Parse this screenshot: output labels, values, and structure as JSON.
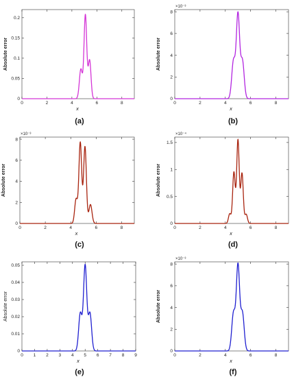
{
  "chart_data": [
    {
      "id": "a",
      "type": "line",
      "caption": "(a)",
      "color": "#d434d6",
      "ylabel": "Absolute error",
      "xlabel": "x",
      "multiplier": "",
      "xlim": [
        0,
        9
      ],
      "ylim": [
        0,
        0.22
      ],
      "xticks": [
        0,
        2,
        4,
        6,
        8
      ],
      "yticks": [
        0,
        0.05,
        0.1,
        0.15,
        0.2
      ],
      "ytick_labels": [
        "0",
        "0.05",
        "0.1",
        "0.15",
        "0.2"
      ],
      "peaks": [
        {
          "x": 4.72,
          "y": 0.073,
          "w": 0.12
        },
        {
          "x": 5.08,
          "y": 0.207,
          "w": 0.11
        },
        {
          "x": 5.42,
          "y": 0.095,
          "w": 0.11
        }
      ]
    },
    {
      "id": "b",
      "type": "line",
      "caption": "(b)",
      "color": "#b224e0",
      "ylabel": "Absolute error",
      "xlabel": "x",
      "multiplier": "×10⁻³",
      "xlim": [
        0,
        9
      ],
      "ylim": [
        0,
        0.0082
      ],
      "xticks": [
        0,
        2,
        4,
        6,
        8
      ],
      "yticks": [
        0,
        0.002,
        0.004,
        0.006,
        0.008
      ],
      "ytick_labels": [
        "0",
        "2",
        "4",
        "6",
        "8"
      ],
      "peaks": [
        {
          "x": 4.65,
          "y": 0.0035,
          "w": 0.14
        },
        {
          "x": 5.0,
          "y": 0.0077,
          "w": 0.13
        },
        {
          "x": 5.35,
          "y": 0.0035,
          "w": 0.14
        }
      ]
    },
    {
      "id": "c",
      "type": "line",
      "caption": "(c)",
      "color": "#a8230e",
      "ylabel": "Absolute error",
      "xlabel": "x",
      "multiplier": "×10⁻³",
      "xlim": [
        0,
        9
      ],
      "ylim": [
        0,
        0.0082
      ],
      "xticks": [
        0,
        2,
        4,
        6,
        8
      ],
      "yticks": [
        0,
        0.002,
        0.004,
        0.006,
        0.008
      ],
      "ytick_labels": [
        "0",
        "2",
        "4",
        "6",
        "8"
      ],
      "peaks": [
        {
          "x": 4.42,
          "y": 0.0023,
          "w": 0.11
        },
        {
          "x": 4.75,
          "y": 0.0077,
          "w": 0.11
        },
        {
          "x": 5.12,
          "y": 0.0073,
          "w": 0.11
        },
        {
          "x": 5.55,
          "y": 0.0018,
          "w": 0.12
        }
      ]
    },
    {
      "id": "d",
      "type": "line",
      "caption": "(d)",
      "color": "#a8230e",
      "ylabel": "Absolute error",
      "xlabel": "x",
      "multiplier": "×10⁻⁴",
      "xlim": [
        0,
        9
      ],
      "ylim": [
        0,
        0.00016
      ],
      "xticks": [
        0,
        2,
        4,
        6,
        8
      ],
      "yticks": [
        0,
        5e-05,
        0.0001,
        0.00015
      ],
      "ytick_labels": [
        "0",
        "0.5",
        "1",
        "1.5"
      ],
      "peaks": [
        {
          "x": 4.35,
          "y": 1.8e-05,
          "w": 0.1
        },
        {
          "x": 4.68,
          "y": 9.5e-05,
          "w": 0.1
        },
        {
          "x": 5.0,
          "y": 0.000155,
          "w": 0.1
        },
        {
          "x": 5.32,
          "y": 9.3e-05,
          "w": 0.1
        },
        {
          "x": 5.65,
          "y": 1.7e-05,
          "w": 0.1
        }
      ]
    },
    {
      "id": "e",
      "type": "line",
      "caption": "(e)",
      "color": "#1f1fd0",
      "ylabel": "Absolute error",
      "xlabel": "x",
      "multiplier": "",
      "xlim": [
        0,
        9
      ],
      "ylim": [
        0,
        0.052
      ],
      "xticks": [
        0,
        1,
        2,
        3,
        4,
        5,
        6,
        7,
        8,
        9
      ],
      "yticks": [
        0,
        0.01,
        0.02,
        0.03,
        0.04,
        0.05
      ],
      "ytick_labels": [
        "0",
        "0.01",
        "0.02",
        "0.03",
        "0.04",
        "0.05"
      ],
      "peaks": [
        {
          "x": 4.62,
          "y": 0.022,
          "w": 0.13
        },
        {
          "x": 5.0,
          "y": 0.05,
          "w": 0.13
        },
        {
          "x": 5.38,
          "y": 0.022,
          "w": 0.13
        }
      ]
    },
    {
      "id": "f",
      "type": "line",
      "caption": "(f)",
      "color": "#1f1fd0",
      "ylabel": "Absolute error",
      "xlabel": "x",
      "multiplier": "×10⁻³",
      "xlim": [
        0,
        9
      ],
      "ylim": [
        0,
        0.0082
      ],
      "xticks": [
        0,
        2,
        4,
        6,
        8
      ],
      "yticks": [
        0,
        0.002,
        0.004,
        0.006,
        0.008
      ],
      "ytick_labels": [
        "0",
        "2",
        "4",
        "6",
        "8"
      ],
      "peaks": [
        {
          "x": 4.65,
          "y": 0.0035,
          "w": 0.14
        },
        {
          "x": 5.0,
          "y": 0.0078,
          "w": 0.13
        },
        {
          "x": 5.35,
          "y": 0.0035,
          "w": 0.14
        }
      ]
    }
  ]
}
